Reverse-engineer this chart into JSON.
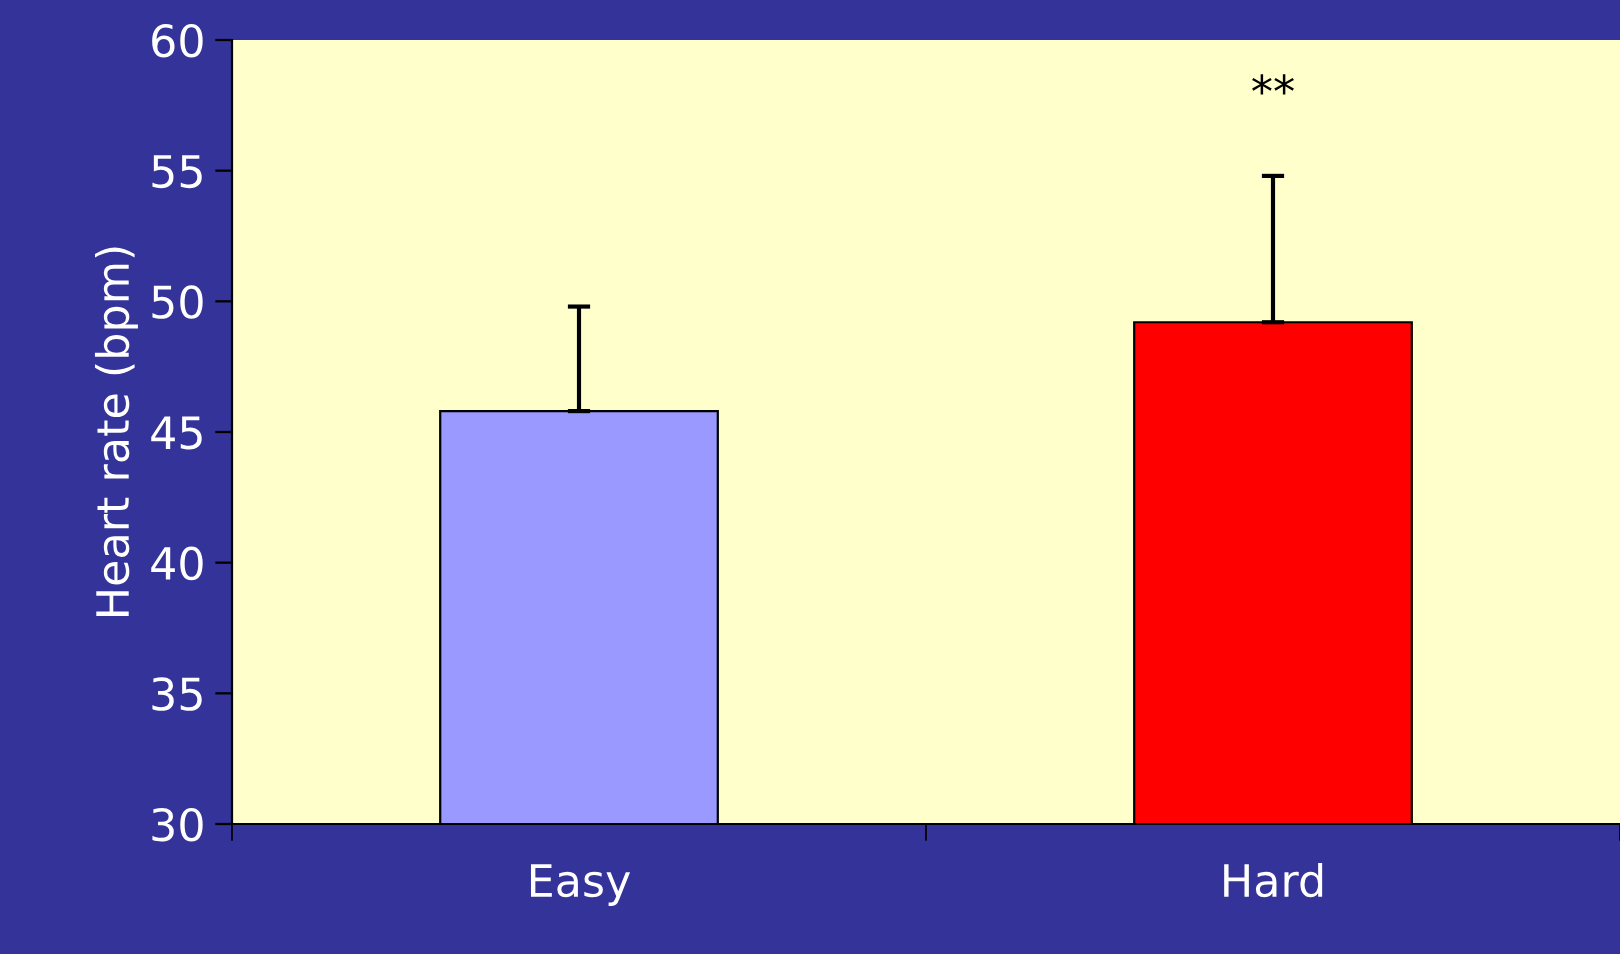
{
  "chart_data": {
    "type": "bar",
    "ylabel": "Heart rate (bpm)",
    "categories": [
      "Easy",
      "Hard"
    ],
    "values": [
      45.8,
      49.2
    ],
    "colors": [
      "#9999ff",
      "#ff0000"
    ],
    "errors": [
      [
        45.8,
        49.8
      ],
      [
        49.2,
        54.8
      ]
    ],
    "ylim": [
      30,
      60
    ],
    "yticks": [
      30,
      35,
      40,
      45,
      50,
      55,
      60
    ],
    "grid": false,
    "legend": false,
    "annotations": [
      "**"
    ]
  }
}
